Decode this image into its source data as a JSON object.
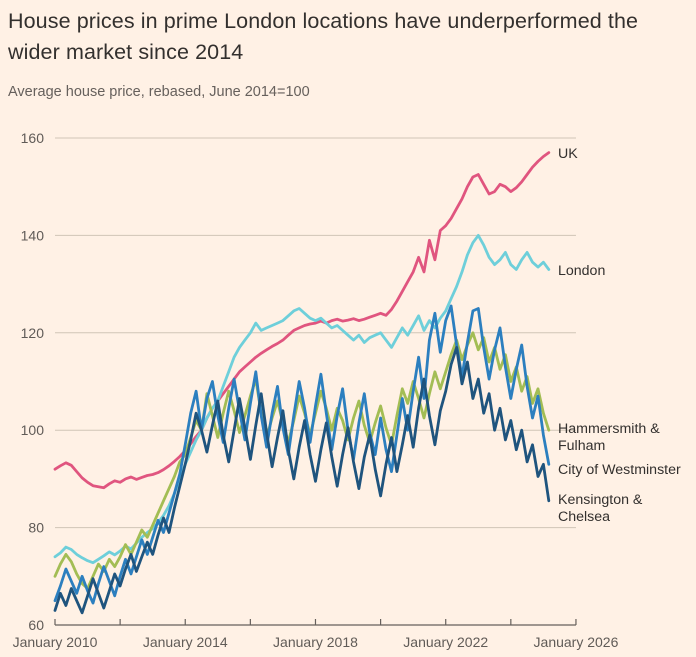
{
  "header": {
    "title": "House prices in prime London locations have underperformed the wider market since 2014",
    "subtitle": "Average house price, rebased, June 2014=100"
  },
  "colors": {
    "background": "#fff1e5",
    "title_text": "#33302e",
    "muted_text": "#66605c",
    "gridline": "#d0c5b6",
    "axis": "#66605c"
  },
  "chart_data": {
    "type": "line",
    "title": "House prices in prime London locations have underperformed the wider market since 2014",
    "subtitle": "Average house price, rebased, June 2014=100",
    "xlabel": "",
    "ylabel": "",
    "xlim": [
      2010.0,
      2026.2
    ],
    "ylim": [
      60,
      160
    ],
    "grid": "horizontal",
    "legend_position": "right-annotations",
    "y_ticks": [
      60,
      80,
      100,
      120,
      140,
      160
    ],
    "x_tick_years": [
      2010,
      2012,
      2014,
      2016,
      2018,
      2020,
      2022,
      2024,
      2026
    ],
    "x_label_years": [
      2010,
      2014,
      2018,
      2022,
      2026
    ],
    "x_labels": [
      "January 2010",
      "January 2014",
      "January 2018",
      "January 2022",
      "January 2026"
    ],
    "x_start_year": 2010.0,
    "x_step_months": 2,
    "series": [
      {
        "id": "uk",
        "name": "UK",
        "color": "#e0557f",
        "values": [
          92.0,
          92.7,
          93.3,
          92.8,
          91.5,
          90.2,
          89.3,
          88.6,
          88.4,
          88.2,
          89.0,
          89.6,
          89.3,
          90.0,
          90.4,
          89.9,
          90.3,
          90.7,
          90.9,
          91.3,
          91.9,
          92.7,
          93.6,
          94.6,
          95.8,
          97.2,
          98.7,
          100.0,
          102.5,
          104.5,
          106.0,
          107.5,
          109.0,
          110.5,
          112.0,
          113.0,
          114.0,
          115.0,
          115.8,
          116.5,
          117.2,
          117.8,
          118.5,
          119.5,
          120.5,
          121.0,
          121.5,
          121.8,
          122.0,
          122.4,
          122.0,
          122.5,
          122.8,
          122.4,
          122.6,
          122.9,
          122.5,
          122.8,
          123.2,
          123.6,
          124.0,
          123.6,
          124.8,
          126.5,
          128.5,
          130.5,
          132.5,
          135.5,
          132.5,
          139.0,
          135.0,
          141.0,
          142.0,
          143.5,
          145.5,
          147.5,
          150.0,
          152.0,
          152.5,
          150.5,
          148.5,
          149.0,
          150.5,
          150.0,
          149.0,
          149.8,
          151.0,
          152.5,
          154.0,
          155.2,
          156.2,
          157.0
        ]
      },
      {
        "id": "london",
        "name": "London",
        "color": "#6ecfda",
        "values": [
          74.0,
          74.8,
          76.0,
          75.5,
          74.5,
          73.8,
          73.2,
          72.8,
          73.5,
          74.2,
          75.0,
          74.4,
          75.2,
          76.2,
          75.6,
          76.8,
          78.0,
          79.0,
          79.8,
          81.0,
          82.5,
          84.5,
          87.0,
          90.0,
          93.0,
          95.5,
          98.0,
          100.0,
          102.5,
          104.5,
          106.0,
          109.0,
          112.0,
          115.0,
          117.0,
          118.5,
          120.0,
          122.0,
          120.5,
          121.0,
          121.5,
          122.0,
          122.5,
          123.5,
          124.5,
          125.0,
          124.0,
          123.0,
          122.5,
          123.0,
          122.0,
          121.0,
          121.5,
          120.5,
          119.5,
          118.5,
          119.5,
          118.0,
          119.0,
          119.5,
          120.0,
          118.5,
          117.0,
          119.0,
          121.0,
          119.5,
          121.5,
          123.5,
          120.5,
          122.5,
          121.0,
          123.0,
          124.5,
          127.0,
          129.5,
          132.5,
          136.0,
          138.5,
          140.0,
          138.0,
          135.5,
          134.0,
          135.0,
          136.5,
          134.0,
          133.0,
          135.0,
          136.5,
          134.5,
          133.5,
          134.5,
          133.0
        ]
      },
      {
        "id": "hammersmith-fulham",
        "name": "Hammersmith &\nFulham",
        "color": "#a3bd54",
        "values": [
          70.0,
          72.5,
          74.5,
          73.0,
          70.5,
          68.5,
          67.5,
          70.0,
          72.5,
          71.0,
          73.5,
          72.0,
          74.0,
          76.5,
          74.5,
          77.0,
          79.5,
          78.0,
          80.5,
          83.0,
          85.5,
          88.0,
          90.5,
          93.5,
          95.0,
          98.5,
          102.0,
          100.0,
          107.5,
          103.0,
          98.5,
          103.5,
          108.0,
          104.0,
          99.5,
          103.0,
          107.0,
          110.5,
          103.5,
          98.5,
          102.5,
          106.0,
          101.5,
          97.5,
          102.0,
          107.0,
          103.5,
          99.0,
          103.5,
          108.0,
          104.5,
          100.0,
          104.5,
          102.0,
          98.0,
          102.5,
          106.0,
          101.0,
          97.5,
          101.5,
          105.0,
          100.5,
          97.0,
          103.0,
          108.5,
          105.5,
          110.0,
          106.5,
          102.5,
          107.5,
          112.0,
          108.5,
          112.0,
          115.5,
          118.5,
          114.5,
          117.5,
          120.0,
          116.5,
          119.0,
          114.0,
          117.0,
          112.5,
          115.5,
          110.0,
          113.0,
          108.0,
          111.0,
          105.5,
          108.5,
          103.5,
          100.0
        ]
      },
      {
        "id": "city-of-westminster",
        "name": "City of Westminster",
        "color": "#2c7fbf",
        "values": [
          65.0,
          68.0,
          71.5,
          69.0,
          66.5,
          70.0,
          67.0,
          64.5,
          68.5,
          72.0,
          69.0,
          66.0,
          70.0,
          73.5,
          70.5,
          74.0,
          77.5,
          74.5,
          78.0,
          81.5,
          79.0,
          83.0,
          87.0,
          91.0,
          97.0,
          103.5,
          108.0,
          100.0,
          106.5,
          110.0,
          103.0,
          97.5,
          104.5,
          110.5,
          104.0,
          98.0,
          105.5,
          112.0,
          103.0,
          96.5,
          103.5,
          109.0,
          100.5,
          95.0,
          103.0,
          110.0,
          104.5,
          97.5,
          105.0,
          111.5,
          103.5,
          96.0,
          103.0,
          108.5,
          100.0,
          94.0,
          101.5,
          107.5,
          99.5,
          95.0,
          102.5,
          96.0,
          91.5,
          99.0,
          106.5,
          100.0,
          108.0,
          115.0,
          106.5,
          118.5,
          124.0,
          116.0,
          122.5,
          125.5,
          117.5,
          111.0,
          118.0,
          124.5,
          125.0,
          117.0,
          110.5,
          116.5,
          121.0,
          113.0,
          106.5,
          112.5,
          117.5,
          109.0,
          102.5,
          107.0,
          99.0,
          93.0
        ]
      },
      {
        "id": "kensington-chelsea",
        "name": "Kensington &\nChelsea",
        "color": "#1f547e",
        "values": [
          63.0,
          66.5,
          64.0,
          67.5,
          65.0,
          62.5,
          66.0,
          69.5,
          66.5,
          63.5,
          67.0,
          70.5,
          68.0,
          71.5,
          74.5,
          71.0,
          74.0,
          77.0,
          74.5,
          78.5,
          82.0,
          79.0,
          84.0,
          88.5,
          93.0,
          98.0,
          103.5,
          100.0,
          95.5,
          101.0,
          106.0,
          99.0,
          93.5,
          100.0,
          106.5,
          100.5,
          94.0,
          101.0,
          107.5,
          99.5,
          92.5,
          98.5,
          104.0,
          96.0,
          90.0,
          96.5,
          102.0,
          95.0,
          89.5,
          96.0,
          101.5,
          94.5,
          88.5,
          95.0,
          100.5,
          93.5,
          88.0,
          94.5,
          99.0,
          92.0,
          86.5,
          93.0,
          98.5,
          91.5,
          97.0,
          103.0,
          96.5,
          104.5,
          110.5,
          103.0,
          97.0,
          104.0,
          108.0,
          113.5,
          117.0,
          109.5,
          114.0,
          106.5,
          110.5,
          103.5,
          107.5,
          100.0,
          104.5,
          98.0,
          102.0,
          96.0,
          100.0,
          93.5,
          97.0,
          90.5,
          93.0,
          85.5
        ]
      }
    ]
  }
}
